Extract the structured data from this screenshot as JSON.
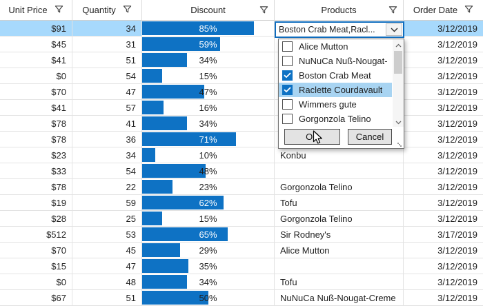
{
  "grid": {
    "columns": [
      {
        "label": "Unit Price"
      },
      {
        "label": "Quantity"
      },
      {
        "label": "Discount"
      },
      {
        "label": "Products"
      },
      {
        "label": "Order Date"
      }
    ],
    "rows": [
      {
        "unit_price": "$91",
        "quantity": "34",
        "discount_pct": 85,
        "discount_label": "85%",
        "product": "",
        "order_date": "3/12/2019",
        "selected": true
      },
      {
        "unit_price": "$45",
        "quantity": "31",
        "discount_pct": 59,
        "discount_label": "59%",
        "product": "",
        "order_date": "3/12/2019",
        "selected": false
      },
      {
        "unit_price": "$41",
        "quantity": "51",
        "discount_pct": 34,
        "discount_label": "34%",
        "product": "",
        "order_date": "3/12/2019",
        "selected": false
      },
      {
        "unit_price": "$0",
        "quantity": "54",
        "discount_pct": 15,
        "discount_label": "15%",
        "product": "",
        "order_date": "3/12/2019",
        "selected": false
      },
      {
        "unit_price": "$70",
        "quantity": "47",
        "discount_pct": 47,
        "discount_label": "47%",
        "product": "",
        "order_date": "3/12/2019",
        "selected": false
      },
      {
        "unit_price": "$41",
        "quantity": "57",
        "discount_pct": 16,
        "discount_label": "16%",
        "product": "",
        "order_date": "3/12/2019",
        "selected": false
      },
      {
        "unit_price": "$78",
        "quantity": "41",
        "discount_pct": 34,
        "discount_label": "34%",
        "product": "",
        "order_date": "3/12/2019",
        "selected": false
      },
      {
        "unit_price": "$78",
        "quantity": "36",
        "discount_pct": 71,
        "discount_label": "71%",
        "product": "",
        "order_date": "3/12/2019",
        "selected": false
      },
      {
        "unit_price": "$23",
        "quantity": "34",
        "discount_pct": 10,
        "discount_label": "10%",
        "product": "Konbu",
        "order_date": "3/12/2019",
        "selected": false
      },
      {
        "unit_price": "$33",
        "quantity": "54",
        "discount_pct": 48,
        "discount_label": "48%",
        "product": "",
        "order_date": "3/12/2019",
        "selected": false
      },
      {
        "unit_price": "$78",
        "quantity": "22",
        "discount_pct": 23,
        "discount_label": "23%",
        "product": "Gorgonzola Telino",
        "order_date": "3/12/2019",
        "selected": false
      },
      {
        "unit_price": "$19",
        "quantity": "59",
        "discount_pct": 62,
        "discount_label": "62%",
        "product": "Tofu",
        "order_date": "3/12/2019",
        "selected": false
      },
      {
        "unit_price": "$28",
        "quantity": "25",
        "discount_pct": 15,
        "discount_label": "15%",
        "product": "Gorgonzola Telino",
        "order_date": "3/12/2019",
        "selected": false
      },
      {
        "unit_price": "$512",
        "quantity": "53",
        "discount_pct": 65,
        "discount_label": "65%",
        "product": "Sir Rodney's",
        "order_date": "3/17/2019",
        "selected": false
      },
      {
        "unit_price": "$70",
        "quantity": "45",
        "discount_pct": 29,
        "discount_label": "29%",
        "product": "Alice Mutton",
        "order_date": "3/12/2019",
        "selected": false
      },
      {
        "unit_price": "$15",
        "quantity": "47",
        "discount_pct": 35,
        "discount_label": "35%",
        "product": "",
        "order_date": "3/12/2019",
        "selected": false
      },
      {
        "unit_price": "$0",
        "quantity": "48",
        "discount_pct": 34,
        "discount_label": "34%",
        "product": "Tofu",
        "order_date": "3/12/2019",
        "selected": false
      },
      {
        "unit_price": "$67",
        "quantity": "51",
        "discount_pct": 50,
        "discount_label": "50%",
        "product": "NuNuCa Nuß-Nougat-Creme",
        "order_date": "3/12/2019",
        "selected": false
      }
    ]
  },
  "editor": {
    "combo_text": "Boston Crab Meat,Racl...",
    "items": [
      {
        "label": "Alice Mutton",
        "checked": false,
        "highlighted": false
      },
      {
        "label": "NuNuCa Nuß-Nougat-",
        "checked": false,
        "highlighted": false
      },
      {
        "label": "Boston Crab Meat",
        "checked": true,
        "highlighted": false
      },
      {
        "label": "Raclette Courdavault",
        "checked": true,
        "highlighted": true
      },
      {
        "label": "Wimmers gute",
        "checked": false,
        "highlighted": false
      },
      {
        "label": "Gorgonzola Telino",
        "checked": false,
        "highlighted": false
      }
    ],
    "ok_label": "OK",
    "cancel_label": "Cancel"
  },
  "colors": {
    "bar_fill": "#0e72c4",
    "selected_row": "#a7d9fc",
    "list_highlight": "#a8d4f2",
    "combo_accent": "#0f6cbd",
    "checkbox_checked": "#0e72c4"
  }
}
